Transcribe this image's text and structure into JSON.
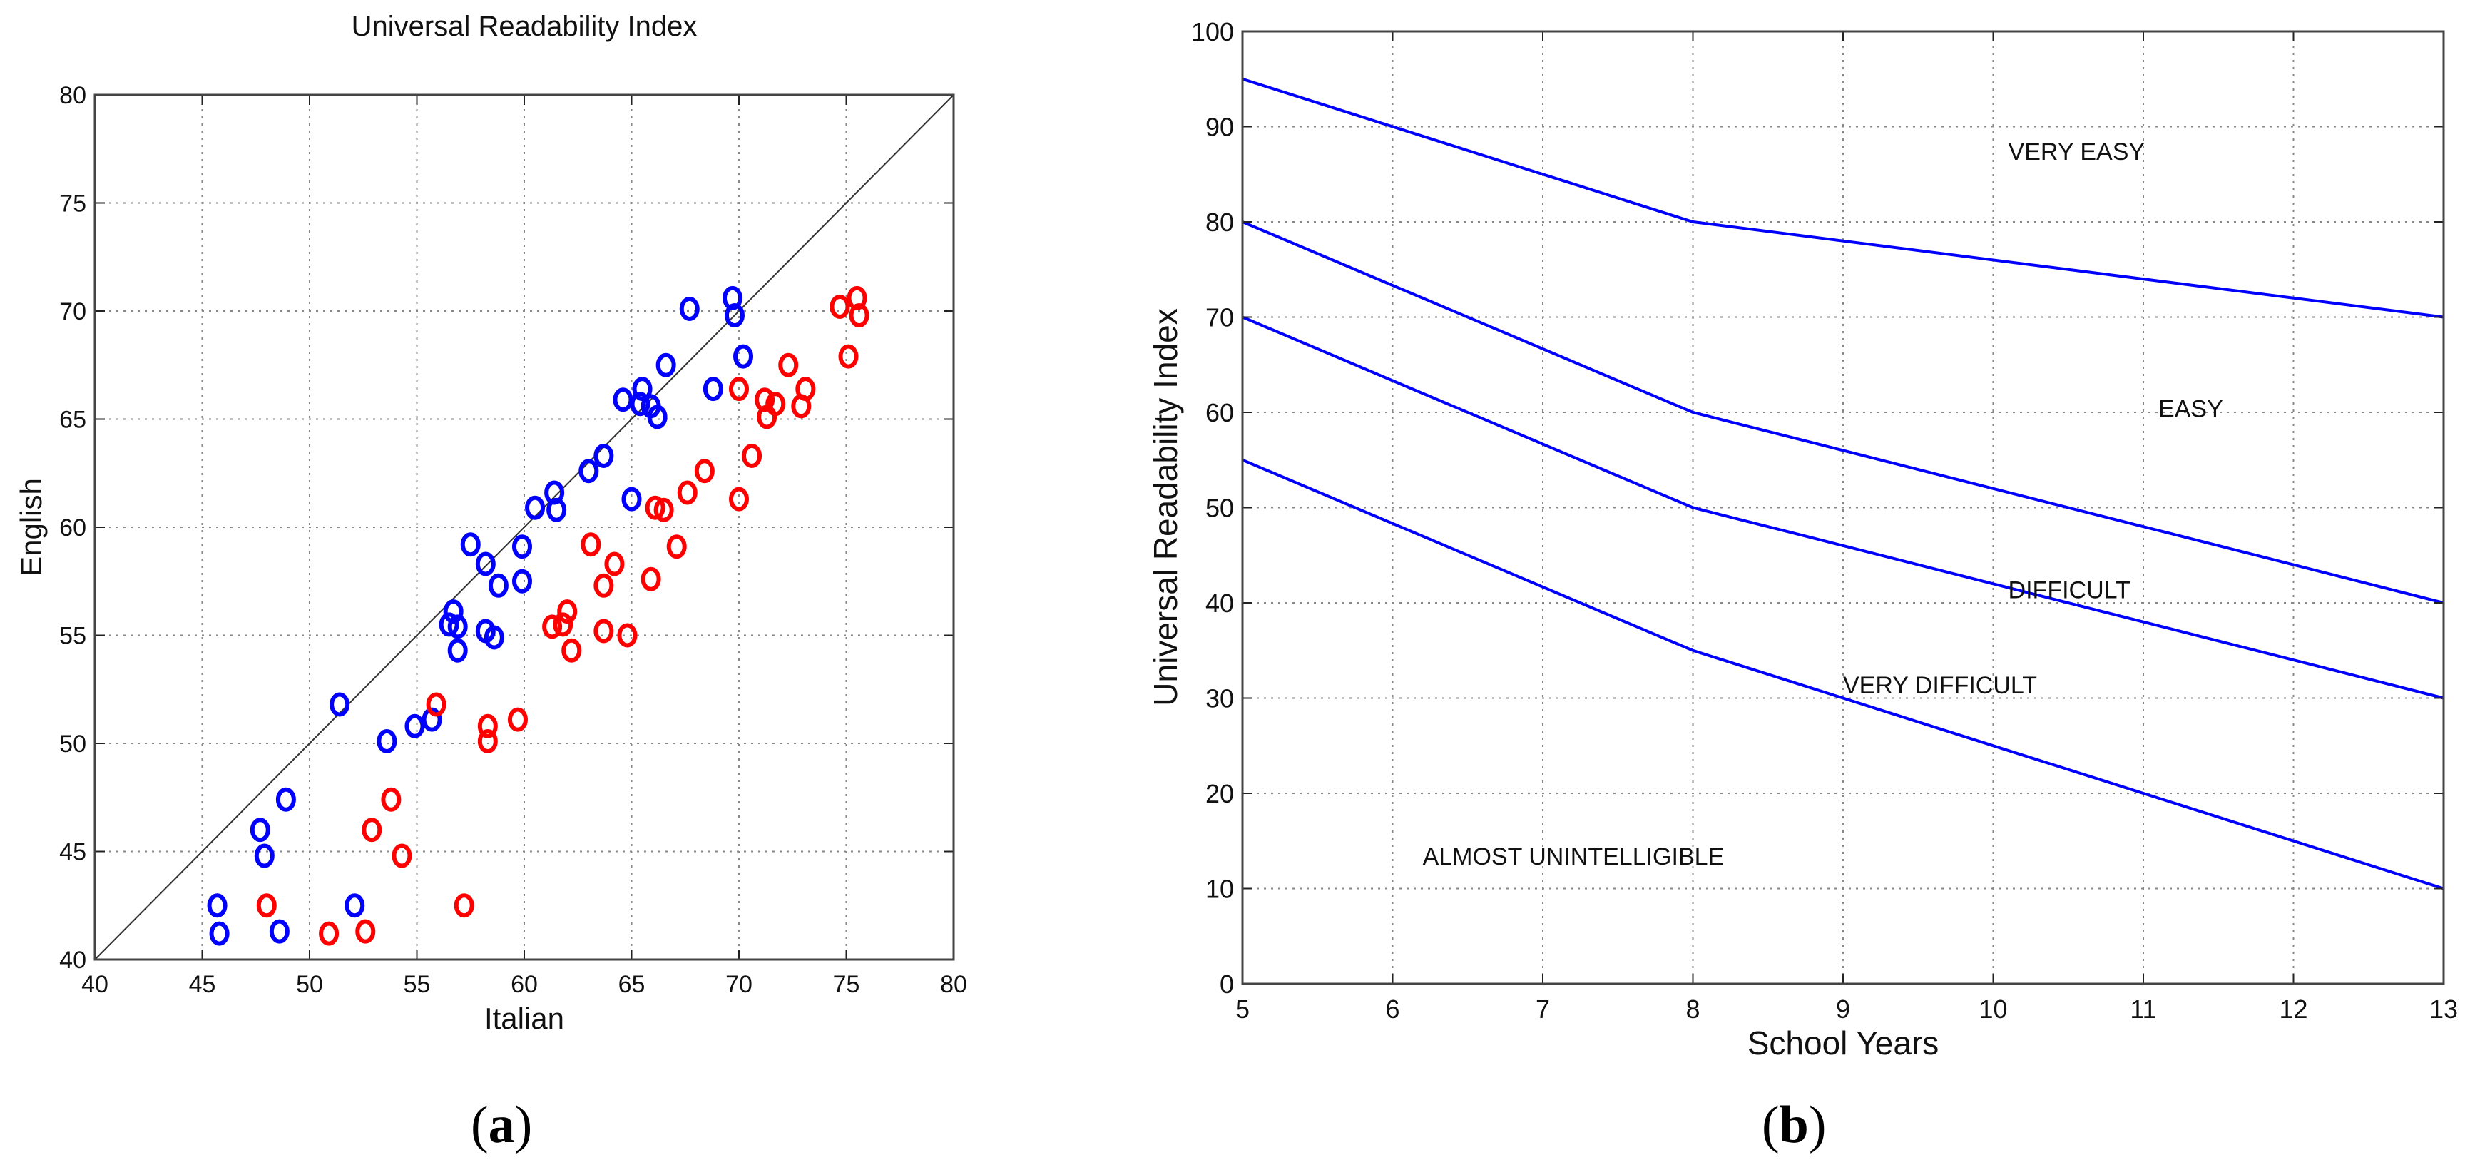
{
  "figure": {
    "panel_a_caption": "a",
    "panel_b_caption": "b"
  },
  "colors": {
    "series_english_native": "#0000ff",
    "series_italian_native": "#ff0000",
    "diagonal": "#333333",
    "zone_lines": "#0000ff",
    "grid": "#888888"
  },
  "chart_data": [
    {
      "id": "a",
      "type": "scatter",
      "title": "Universal Readability Index",
      "xlabel": "Italian",
      "ylabel": "English",
      "xlim": [
        40,
        80
      ],
      "ylim": [
        40,
        80
      ],
      "xticks": [
        40,
        45,
        50,
        55,
        60,
        65,
        70,
        75,
        80
      ],
      "yticks": [
        40,
        45,
        50,
        55,
        60,
        65,
        70,
        75,
        80
      ],
      "grid": true,
      "reference_line": {
        "x": [
          40,
          80
        ],
        "y": [
          40,
          80
        ]
      },
      "marker": "o",
      "series": [
        {
          "name": "blue",
          "color": "#0000ff",
          "points": [
            [
              45.7,
              42.5
            ],
            [
              45.8,
              41.2
            ],
            [
              48.6,
              41.3
            ],
            [
              52.1,
              42.5
            ],
            [
              47.9,
              44.8
            ],
            [
              47.7,
              46.0
            ],
            [
              48.9,
              47.4
            ],
            [
              53.6,
              50.1
            ],
            [
              54.9,
              50.8
            ],
            [
              55.7,
              51.1
            ],
            [
              51.4,
              51.8
            ],
            [
              56.9,
              54.3
            ],
            [
              56.5,
              55.5
            ],
            [
              56.9,
              55.4
            ],
            [
              56.7,
              56.1
            ],
            [
              58.2,
              55.2
            ],
            [
              58.6,
              54.9
            ],
            [
              58.8,
              57.3
            ],
            [
              59.9,
              57.5
            ],
            [
              57.5,
              59.2
            ],
            [
              58.2,
              58.3
            ],
            [
              59.9,
              59.1
            ],
            [
              60.5,
              60.9
            ],
            [
              61.5,
              60.8
            ],
            [
              61.4,
              61.6
            ],
            [
              65.0,
              61.3
            ],
            [
              63.0,
              62.6
            ],
            [
              63.7,
              63.3
            ],
            [
              64.6,
              65.9
            ],
            [
              65.4,
              65.7
            ],
            [
              65.9,
              65.6
            ],
            [
              66.2,
              65.1
            ],
            [
              65.5,
              66.4
            ],
            [
              66.6,
              67.5
            ],
            [
              68.8,
              66.4
            ],
            [
              70.2,
              67.9
            ],
            [
              67.7,
              70.1
            ],
            [
              69.7,
              70.6
            ],
            [
              69.8,
              69.8
            ]
          ]
        },
        {
          "name": "red",
          "color": "#ff0000",
          "points": [
            [
              48.0,
              42.5
            ],
            [
              50.9,
              41.2
            ],
            [
              52.6,
              41.3
            ],
            [
              57.2,
              42.5
            ],
            [
              54.3,
              44.8
            ],
            [
              52.9,
              46.0
            ],
            [
              53.8,
              47.4
            ],
            [
              58.3,
              50.1
            ],
            [
              58.3,
              50.8
            ],
            [
              59.7,
              51.1
            ],
            [
              55.9,
              51.8
            ],
            [
              62.2,
              54.3
            ],
            [
              61.3,
              55.4
            ],
            [
              61.8,
              55.5
            ],
            [
              62.0,
              56.1
            ],
            [
              63.7,
              55.2
            ],
            [
              64.8,
              55.0
            ],
            [
              63.7,
              57.3
            ],
            [
              65.9,
              57.6
            ],
            [
              63.1,
              59.2
            ],
            [
              64.2,
              58.3
            ],
            [
              67.1,
              59.1
            ],
            [
              66.1,
              60.9
            ],
            [
              66.5,
              60.8
            ],
            [
              67.6,
              61.6
            ],
            [
              70.0,
              61.3
            ],
            [
              68.4,
              62.6
            ],
            [
              70.6,
              63.3
            ],
            [
              71.2,
              65.9
            ],
            [
              71.7,
              65.7
            ],
            [
              72.9,
              65.6
            ],
            [
              71.3,
              65.1
            ],
            [
              73.1,
              66.4
            ],
            [
              70.0,
              66.4
            ],
            [
              72.3,
              67.5
            ],
            [
              75.1,
              67.9
            ],
            [
              74.7,
              70.2
            ],
            [
              75.5,
              70.6
            ],
            [
              75.6,
              69.8
            ]
          ]
        }
      ]
    },
    {
      "id": "b",
      "type": "line",
      "title": "",
      "xlabel": "School Years",
      "ylabel": "Universal Readability Index",
      "xlim": [
        5,
        13
      ],
      "ylim": [
        0,
        100
      ],
      "xticks": [
        5,
        6,
        7,
        8,
        9,
        10,
        11,
        12,
        13
      ],
      "yticks": [
        0,
        10,
        20,
        30,
        40,
        50,
        60,
        70,
        80,
        90,
        100
      ],
      "grid": true,
      "series": [
        {
          "name": "very easy / easy boundary",
          "x": [
            5,
            8,
            13
          ],
          "y": [
            95,
            80,
            70
          ]
        },
        {
          "name": "easy / difficult boundary",
          "x": [
            5,
            8,
            13
          ],
          "y": [
            80,
            60,
            40
          ]
        },
        {
          "name": "difficult / very difficult boundary",
          "x": [
            5,
            8,
            13
          ],
          "y": [
            70,
            50,
            30
          ]
        },
        {
          "name": "very difficult / almost unintelligible boundary",
          "x": [
            5,
            8,
            13
          ],
          "y": [
            55,
            35,
            10
          ]
        }
      ],
      "annotations": [
        {
          "text": "VERY EASY",
          "x": 10.1,
          "y": 86.5
        },
        {
          "text": "EASY",
          "x": 11.1,
          "y": 59.5
        },
        {
          "text": "DIFFICULT",
          "x": 10.1,
          "y": 40.5
        },
        {
          "text": "VERY DIFFICULT",
          "x": 9.0,
          "y": 30.5
        },
        {
          "text": "ALMOST UNINTELLIGIBLE",
          "x": 6.2,
          "y": 12.5
        }
      ]
    }
  ]
}
